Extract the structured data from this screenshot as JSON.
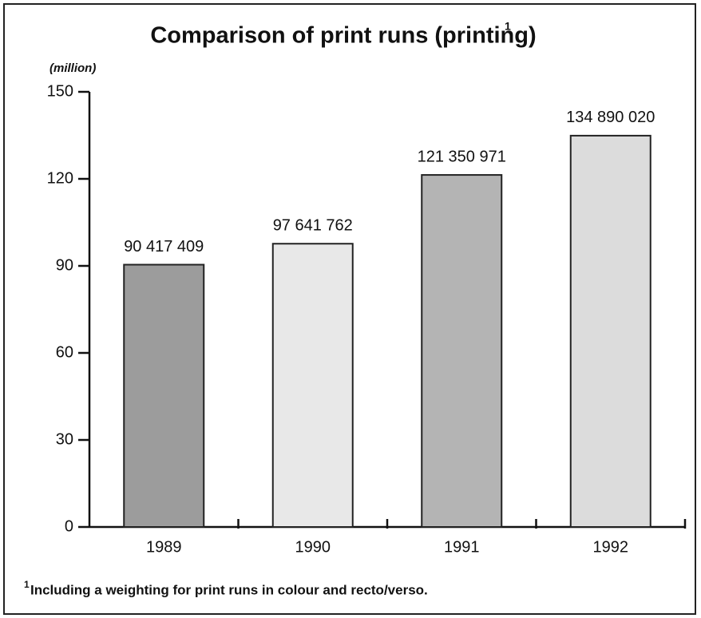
{
  "chart_data": {
    "type": "bar",
    "title": "Comparison of print runs (printing)",
    "title_marker": "1",
    "y_label": "(million)",
    "categories": [
      "1989",
      "1990",
      "1991",
      "1992"
    ],
    "values": [
      90.417409,
      97.641762,
      121.350971,
      134.89002
    ],
    "value_labels": [
      "90 417 409",
      "97 641 762",
      "121 350 971",
      "134 890 020"
    ],
    "colors": [
      "#9c9c9c",
      "#e8e8e8",
      "#b4b4b4",
      "#dcdcdc"
    ],
    "ylim": [
      0,
      150
    ],
    "yticks": [
      0,
      30,
      60,
      90,
      120,
      150
    ],
    "grid": false,
    "footnote": {
      "marker": "1",
      "text": "Including a weighting for print runs in colour and recto/verso."
    }
  }
}
